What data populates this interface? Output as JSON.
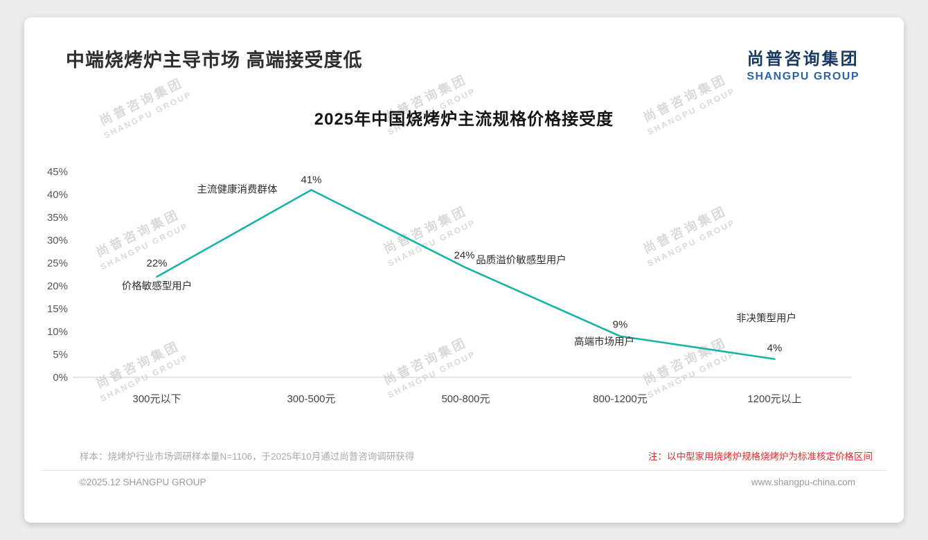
{
  "page": {
    "title": "中端烧烤炉主导市场 高端接受度低",
    "logo_cn": "尚普咨询集团",
    "logo_en": "SHANGPU GROUP",
    "watermark_cn": "尚普咨询集团",
    "watermark_en": "SHANGPU GROUP",
    "sample_note": "样本：烧烤炉行业市场调研样本量N=1106，于2025年10月通过尚普咨询调研获得",
    "price_note": "注：以中型家用烧烤炉规格烧烤炉为标准核定价格区间",
    "copyright": "©2025.12 SHANGPU GROUP",
    "website": "www.shangpu-china.com"
  },
  "chart_data": {
    "type": "line",
    "title": "2025年中国烧烤炉主流规格价格接受度",
    "categories": [
      "300元以下",
      "300-500元",
      "500-800元",
      "800-1200元",
      "1200元以上"
    ],
    "values": [
      22,
      41,
      24,
      9,
      4
    ],
    "point_labels": [
      "22%",
      "41%",
      "24%",
      "9%",
      "4%"
    ],
    "annotations": [
      "价格敏感型用户",
      "主流健康消费群体",
      "品质溢价敏感型用户",
      "高端市场用户",
      "非决策型用户"
    ],
    "ylim": [
      0,
      45
    ],
    "ytick_step": 5,
    "ytick_suffix": "%",
    "line_color": "#17b3a6",
    "grid": false,
    "legend": false
  }
}
